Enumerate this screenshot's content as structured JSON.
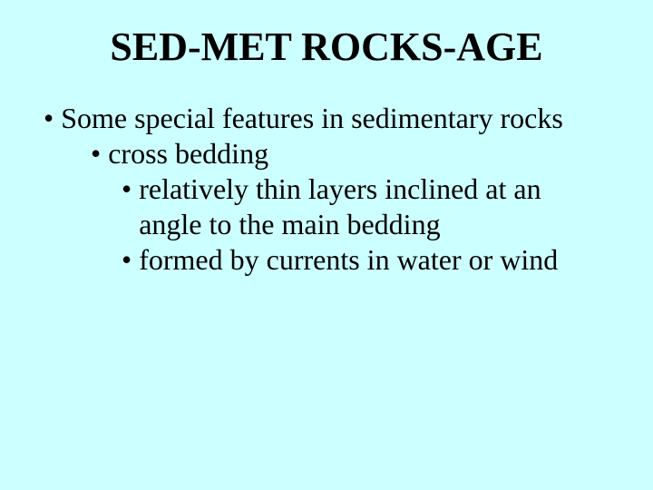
{
  "slide": {
    "background_color": "#ccffff",
    "title": {
      "text": "SED-MET ROCKS-AGE",
      "color": "#000000",
      "font_weight": "bold",
      "font_size_pt": 33
    },
    "body_font_size_pt": 24,
    "body_color": "#000000",
    "bullets": {
      "l1": {
        "marker": "•",
        "text": "Some special features in sedimentary rocks"
      },
      "l2": {
        "marker": "•",
        "text": "cross bedding"
      },
      "l3a": {
        "marker": "•",
        "text": "relatively thin layers inclined at an angle to the main bedding"
      },
      "l3b": {
        "marker": "•",
        "text": "formed by currents in water or wind"
      }
    }
  }
}
